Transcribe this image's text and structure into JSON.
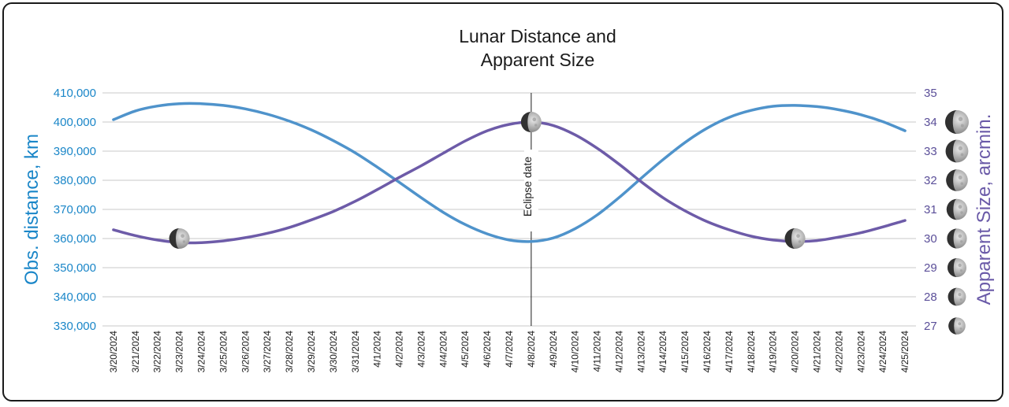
{
  "colors": {
    "distance": "#4f93cb",
    "size": "#6d5ba8",
    "left_axis_text": "#1a86c8",
    "right_axis_text": "#5b4f99"
  },
  "chart_data": {
    "type": "line",
    "title_lines": [
      "Lunar Distance and",
      "Apparent Size"
    ],
    "ylabel_left": "Obs. distance, km",
    "ylabel_right": "Apparent Size, arcmin.",
    "ylim_left": [
      330000,
      410000
    ],
    "ylim_right": [
      27,
      35
    ],
    "yticks_left": [
      "330,000",
      "340,000",
      "350,000",
      "360,000",
      "370,000",
      "380,000",
      "390,000",
      "400,000",
      "410,000"
    ],
    "yticks_left_values": [
      330000,
      340000,
      350000,
      360000,
      370000,
      380000,
      390000,
      400000,
      410000
    ],
    "yticks_right": [
      "27",
      "28",
      "29",
      "30",
      "31",
      "32",
      "33",
      "34",
      "35"
    ],
    "yticks_right_values": [
      27,
      28,
      29,
      30,
      31,
      32,
      33,
      34,
      35
    ],
    "grid": true,
    "categories": [
      "3/20/2024",
      "3/21/2024",
      "3/22/2024",
      "3/23/2024",
      "3/24/2024",
      "3/25/2024",
      "3/26/2024",
      "3/27/2024",
      "3/28/2024",
      "3/29/2024",
      "3/30/2024",
      "3/31/2024",
      "4/1/2024",
      "4/2/2024",
      "4/3/2024",
      "4/4/2024",
      "4/5/2024",
      "4/6/2024",
      "4/7/2024",
      "4/8/2024",
      "4/9/2024",
      "4/10/2024",
      "4/11/2024",
      "4/12/2024",
      "4/13/2024",
      "4/14/2024",
      "4/15/2024",
      "4/16/2024",
      "4/17/2024",
      "4/18/2024",
      "4/19/2024",
      "4/20/2024",
      "4/21/2024",
      "4/22/2024",
      "4/23/2024",
      "4/24/2024",
      "4/25/2024"
    ],
    "series": [
      {
        "axis": "left",
        "values": [
          400800,
          403800,
          405500,
          406300,
          406300,
          405700,
          404500,
          402700,
          400300,
          397300,
          393600,
          389400,
          384500,
          379300,
          374000,
          369000,
          364800,
          361600,
          359500,
          359000,
          360200,
          363400,
          368100,
          374100,
          380700,
          387100,
          393000,
          397900,
          401600,
          404000,
          405400,
          405700,
          405300,
          404200,
          402500,
          400100,
          397000
        ]
      },
      {
        "axis": "right",
        "values": [
          30.3,
          30.1,
          29.95,
          29.86,
          29.86,
          29.92,
          30.03,
          30.18,
          30.38,
          30.64,
          30.93,
          31.28,
          31.68,
          32.1,
          32.5,
          32.93,
          33.35,
          33.7,
          33.92,
          34.0,
          33.88,
          33.56,
          33.1,
          32.55,
          31.95,
          31.4,
          30.95,
          30.58,
          30.3,
          30.08,
          29.95,
          29.9,
          29.93,
          30.05,
          30.2,
          30.4,
          30.62
        ]
      }
    ],
    "annotations": [
      {
        "x": "4/8/2024",
        "text": "Eclipse date",
        "type": "vertical-line"
      }
    ],
    "moon_markers": [
      {
        "x": "3/23/2024",
        "axis": "right",
        "y": 30.0
      },
      {
        "x": "4/8/2024",
        "axis": "right",
        "y": 34.0
      },
      {
        "x": "4/20/2024",
        "axis": "right",
        "y": 30.0
      }
    ],
    "moon_size_scale": [
      34,
      33,
      32,
      31,
      30,
      29,
      28,
      27
    ]
  }
}
